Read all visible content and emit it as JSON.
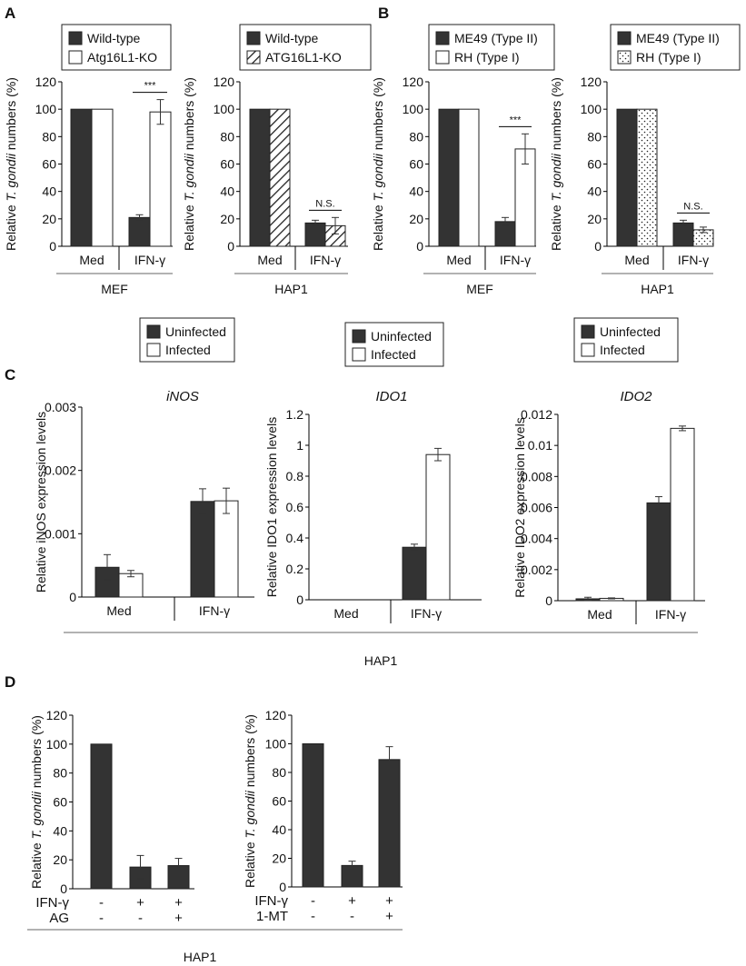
{
  "colors": {
    "dark": "#333333",
    "white": "#ffffff",
    "axis": "#000000"
  },
  "panels": [
    {
      "label": "A"
    },
    {
      "label": "B"
    },
    {
      "label": "C"
    },
    {
      "label": "D"
    }
  ],
  "chart_data": [
    {
      "id": "A1",
      "panel": "A",
      "type": "bar",
      "ylabel": "Relative T. gondii numbers (%)",
      "ylabel_italic": "T. gondii",
      "ylim": [
        0,
        120
      ],
      "yticks": [
        "0",
        "20",
        "40",
        "60",
        "80",
        "100",
        "120"
      ],
      "categories": [
        "Med",
        "IFN-γ"
      ],
      "group_label": "MEF",
      "series": [
        {
          "name": "Wild-type",
          "fill": "dark",
          "values": [
            100,
            21
          ],
          "errors": [
            0,
            2
          ]
        },
        {
          "name": "Atg16L1-KO",
          "fill": "white",
          "values": [
            100,
            98
          ],
          "errors": [
            0,
            9
          ]
        }
      ],
      "annotation": {
        "text": "***",
        "category": 1
      }
    },
    {
      "id": "A2",
      "panel": "A",
      "type": "bar",
      "ylabel": "Relative T. gondii numbers (%)",
      "ylabel_italic": "T. gondii",
      "ylim": [
        0,
        120
      ],
      "yticks": [
        "0",
        "20",
        "40",
        "60",
        "80",
        "100",
        "120"
      ],
      "categories": [
        "Med",
        "IFN-γ"
      ],
      "group_label": "HAP1",
      "series": [
        {
          "name": "Wild-type",
          "fill": "dark",
          "values": [
            100,
            17
          ],
          "errors": [
            0,
            2
          ]
        },
        {
          "name": "ATG16L1-KO",
          "fill": "hatch",
          "values": [
            100,
            15
          ],
          "errors": [
            0,
            6
          ]
        }
      ],
      "annotation": {
        "text": "N.S.",
        "category": 1
      }
    },
    {
      "id": "B1",
      "panel": "B",
      "type": "bar",
      "ylabel": "Relative T. gondii numbers (%)",
      "ylabel_italic": "T. gondii",
      "ylim": [
        0,
        120
      ],
      "yticks": [
        "0",
        "20",
        "40",
        "60",
        "80",
        "100",
        "120"
      ],
      "categories": [
        "Med",
        "IFN-γ"
      ],
      "group_label": "MEF",
      "series": [
        {
          "name": "ME49 (Type II)",
          "fill": "dark",
          "values": [
            100,
            18
          ],
          "errors": [
            0,
            3
          ]
        },
        {
          "name": "RH (Type I)",
          "fill": "white",
          "values": [
            100,
            71
          ],
          "errors": [
            0,
            11
          ]
        }
      ],
      "annotation": {
        "text": "***",
        "category": 1
      }
    },
    {
      "id": "B2",
      "panel": "B",
      "type": "bar",
      "ylabel": "Relative T. gondii numbers (%)",
      "ylabel_italic": "T. gondii",
      "ylim": [
        0,
        120
      ],
      "yticks": [
        "0",
        "20",
        "40",
        "60",
        "80",
        "100",
        "120"
      ],
      "categories": [
        "Med",
        "IFN-γ"
      ],
      "group_label": "HAP1",
      "series": [
        {
          "name": "ME49 (Type II)",
          "fill": "dark",
          "values": [
            100,
            17
          ],
          "errors": [
            0,
            2
          ]
        },
        {
          "name": "RH (Type I)",
          "fill": "dots",
          "values": [
            100,
            12
          ],
          "errors": [
            0,
            2
          ]
        }
      ],
      "annotation": {
        "text": "N.S.",
        "category": 1
      }
    },
    {
      "id": "C1",
      "panel": "C",
      "type": "bar",
      "title": "iNOS",
      "ylabel": "Relative iNOS expression levels",
      "ylim": [
        0,
        0.003
      ],
      "yticks": [
        "0",
        "0.001",
        "0.002",
        "0.003"
      ],
      "categories": [
        "Med",
        "IFN-γ"
      ],
      "series": [
        {
          "name": "Uninfected",
          "fill": "dark",
          "values": [
            0.00047,
            0.00151
          ],
          "errors": [
            0.0002,
            0.0002
          ]
        },
        {
          "name": "Infected",
          "fill": "white",
          "values": [
            0.00037,
            0.00152
          ],
          "errors": [
            5e-05,
            0.0002
          ]
        }
      ]
    },
    {
      "id": "C2",
      "panel": "C",
      "type": "bar",
      "title": "IDO1",
      "ylabel": "Relative IDO1 expression levels",
      "ylim": [
        0,
        1.2
      ],
      "yticks": [
        "0",
        "0.2",
        "0.4",
        "0.6",
        "0.8",
        "1",
        "1.2"
      ],
      "categories": [
        "Med",
        "IFN-γ"
      ],
      "series": [
        {
          "name": "Uninfected",
          "fill": "dark",
          "values": [
            0,
            0.34
          ],
          "errors": [
            0,
            0.02
          ]
        },
        {
          "name": "Infected",
          "fill": "white",
          "values": [
            0,
            0.94
          ],
          "errors": [
            0,
            0.04
          ]
        }
      ]
    },
    {
      "id": "C3",
      "panel": "C",
      "type": "bar",
      "title": "IDO2",
      "ylabel": "Relative IDO2 expression levels",
      "ylim": [
        0,
        0.012
      ],
      "yticks": [
        "0",
        "0.002",
        "0.004",
        "0.006",
        "0.008",
        "0.01",
        "0.012"
      ],
      "categories": [
        "Med",
        "IFN-γ"
      ],
      "series": [
        {
          "name": "Uninfected",
          "fill": "dark",
          "values": [
            0.00012,
            0.0063
          ],
          "errors": [
            0.0001,
            0.0004
          ]
        },
        {
          "name": "Infected",
          "fill": "white",
          "values": [
            0.00015,
            0.0111
          ],
          "errors": [
            3e-05,
            0.00015
          ]
        }
      ]
    },
    {
      "id": "D1",
      "panel": "D",
      "type": "bar",
      "ylabel": "Relative T. gondii numbers (%)",
      "ylabel_italic": "T. gondii",
      "ylim": [
        0,
        120
      ],
      "yticks": [
        "0",
        "20",
        "40",
        "60",
        "80",
        "100",
        "120"
      ],
      "values": [
        100,
        15,
        16
      ],
      "errors": [
        0,
        8,
        5
      ],
      "condition_rows": [
        {
          "name": "IFN-γ",
          "cells": [
            "-",
            "+",
            "+"
          ]
        },
        {
          "name": "AG",
          "cells": [
            "-",
            "-",
            "+"
          ]
        }
      ]
    },
    {
      "id": "D2",
      "panel": "D",
      "type": "bar",
      "ylabel": "Relative T. gondii numbers (%)",
      "ylabel_italic": "T. gondii",
      "ylim": [
        0,
        120
      ],
      "yticks": [
        "0",
        "20",
        "40",
        "60",
        "80",
        "100",
        "120"
      ],
      "values": [
        100,
        15,
        89
      ],
      "errors": [
        0,
        3,
        9
      ],
      "condition_rows": [
        {
          "name": "IFN-γ",
          "cells": [
            "-",
            "+",
            "+"
          ]
        },
        {
          "name": "1-MT",
          "cells": [
            "-",
            "-",
            "+"
          ]
        }
      ]
    }
  ],
  "shared_labels": {
    "hap1_c": "HAP1",
    "hap1_d": "HAP1"
  }
}
